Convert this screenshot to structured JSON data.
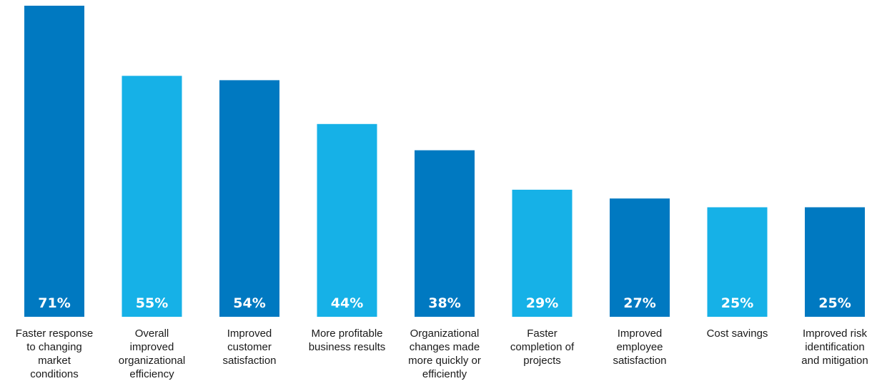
{
  "chart_data": {
    "type": "bar",
    "categories": [
      "Faster response to changing market conditions",
      "Overall improved organizational efficiency",
      "Improved customer satisfaction",
      "More profitable business results",
      "Organizational changes made more quickly or efficiently",
      "Faster completion of projects",
      "Improved employee satisfaction",
      "Cost savings",
      "Improved risk identification and mitigation"
    ],
    "category_label_lines": [
      [
        "Faster response",
        "to changing",
        "market",
        "conditions"
      ],
      [
        "Overall",
        "improved",
        "organizational",
        "efficiency"
      ],
      [
        "Improved",
        "customer",
        "satisfaction"
      ],
      [
        "More profitable",
        "business results"
      ],
      [
        "Organizational",
        "changes made",
        "more quickly or",
        "efficiently"
      ],
      [
        "Faster",
        "completion of",
        "projects"
      ],
      [
        "Improved",
        "employee",
        "satisfaction"
      ],
      [
        "Cost savings"
      ],
      [
        "Improved risk",
        "identification",
        "and mitigation"
      ]
    ],
    "values": [
      71,
      55,
      54,
      44,
      38,
      29,
      27,
      25,
      25
    ],
    "value_labels": [
      "71%",
      "55%",
      "54%",
      "44%",
      "38%",
      "29%",
      "27%",
      "25%",
      "25%"
    ],
    "unit": "%",
    "ylim": [
      0,
      71
    ],
    "grid": false,
    "legend": "none",
    "colors": {
      "dark_blue": "#0079C1",
      "light_blue": "#16B1E7",
      "pattern": [
        "dark_blue",
        "light_blue",
        "dark_blue",
        "light_blue",
        "dark_blue",
        "light_blue",
        "dark_blue",
        "light_blue",
        "dark_blue"
      ]
    }
  }
}
